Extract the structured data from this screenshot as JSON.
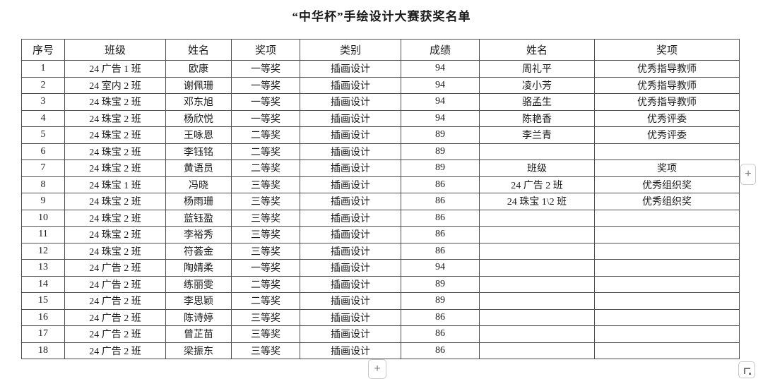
{
  "title": "“中华杯”手绘设计大赛获奖名单",
  "table": {
    "headers": [
      "序号",
      "班级",
      "姓名",
      "奖项",
      "类别",
      "成绩",
      "姓名",
      "奖项"
    ],
    "rows": [
      [
        "1",
        "24 广告 1 班",
        "欧康",
        "一等奖",
        "插画设计",
        "94",
        "周礼平",
        "优秀指导教师"
      ],
      [
        "2",
        "24 室内 2 班",
        "谢佩珊",
        "一等奖",
        "插画设计",
        "94",
        "凌小芳",
        "优秀指导教师"
      ],
      [
        "3",
        "24 珠宝 2 班",
        "邓东旭",
        "一等奖",
        "插画设计",
        "94",
        "骆孟生",
        "优秀指导教师"
      ],
      [
        "4",
        "24 珠宝 2 班",
        "杨欣悦",
        "一等奖",
        "插画设计",
        "94",
        "陈艳香",
        "优秀评委"
      ],
      [
        "5",
        "24 珠宝 2 班",
        "王咏恩",
        "二等奖",
        "插画设计",
        "89",
        "李兰青",
        "优秀评委"
      ],
      [
        "6",
        "24 珠宝 2 班",
        "李钰铭",
        "二等奖",
        "插画设计",
        "89",
        "",
        ""
      ],
      [
        "7",
        "24 珠宝 2 班",
        "黄语员",
        "二等奖",
        "插画设计",
        "89",
        "班级",
        "奖项"
      ],
      [
        "8",
        "24 珠宝 1 班",
        "冯晓",
        "三等奖",
        "插画设计",
        "86",
        "24 广告 2 班",
        "优秀组织奖"
      ],
      [
        "9",
        "24 珠宝 2 班",
        "杨雨珊",
        "三等奖",
        "插画设计",
        "86",
        "24 珠宝 1\\2 班",
        "优秀组织奖"
      ],
      [
        "10",
        "24 珠宝 2 班",
        "蓝钰盈",
        "三等奖",
        "插画设计",
        "86",
        "",
        ""
      ],
      [
        "11",
        "24 珠宝 2 班",
        "李裕秀",
        "三等奖",
        "插画设计",
        "86",
        "",
        ""
      ],
      [
        "12",
        "24 珠宝 2 班",
        "符荟金",
        "三等奖",
        "插画设计",
        "86",
        "",
        ""
      ],
      [
        "13",
        "24 广告 2 班",
        "陶婧柔",
        "一等奖",
        "插画设计",
        "94",
        "",
        ""
      ],
      [
        "14",
        "24 广告 2 班",
        "练丽雯",
        "二等奖",
        "插画设计",
        "89",
        "",
        ""
      ],
      [
        "15",
        "24 广告 2 班",
        "李思颖",
        "二等奖",
        "插画设计",
        "89",
        "",
        ""
      ],
      [
        "16",
        "24 广告 2 班",
        "陈诗婷",
        "三等奖",
        "插画设计",
        "86",
        "",
        ""
      ],
      [
        "17",
        "24 广告 2 班",
        "曾芷苗",
        "三等奖",
        "插画设计",
        "86",
        "",
        ""
      ],
      [
        "18",
        "24 广告 2 班",
        "梁振东",
        "三等奖",
        "插画设计",
        "86",
        "",
        ""
      ]
    ]
  },
  "controls": {
    "add_column_button": "+",
    "add_row_button": "+"
  },
  "colors": {
    "text": "#1a1a1a",
    "table_border": "#4e4e4e",
    "control_border": "#c8c8c8",
    "control_glyph": "#7a7a7a",
    "background": "#ffffff"
  }
}
